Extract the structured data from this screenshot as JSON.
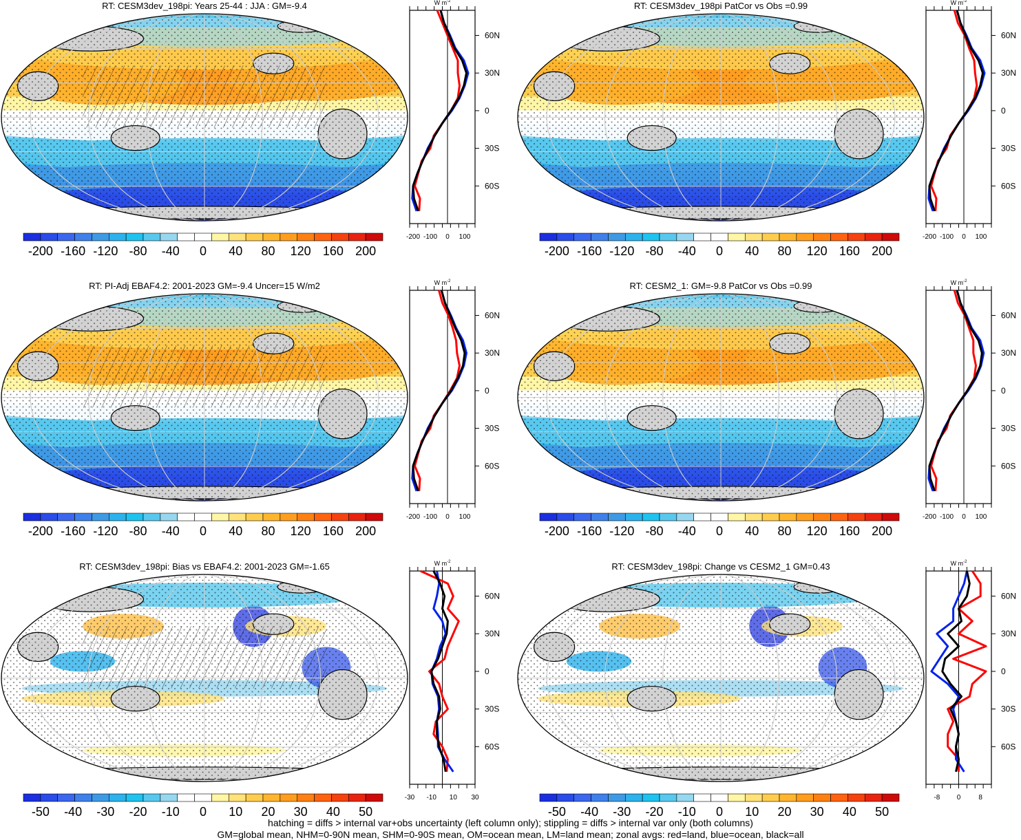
{
  "panels": [
    {
      "title": "RT: CESM3dev_198pi: Years 25-44 : JJA : GM=-9.4",
      "scale": "full"
    },
    {
      "title": "RT: CESM3dev_198pi PatCor vs Obs =0.99",
      "scale": "full"
    },
    {
      "title": "RT: PI-Adj EBAF4.2: 2001-2023 GM=-9.4 Uncer=15 W/m2",
      "scale": "full"
    },
    {
      "title": "RT: CESM2_1: GM=-9.8 PatCor vs Obs =0.99",
      "scale": "full"
    },
    {
      "title": "RT: CESM3dev_198pi: Bias vs EBAF4.2: 2001-2023 GM=-1.65",
      "scale": "bias"
    },
    {
      "title": "RT: CESM3dev_198pi: Change vs CESM2_1 GM=0.43",
      "scale": "change"
    }
  ],
  "colorbars": {
    "full": {
      "labels": [
        "-200",
        "-160",
        "-120",
        "-80",
        "-40",
        "0",
        "40",
        "80",
        "120",
        "160",
        "200"
      ]
    },
    "diff": {
      "labels": [
        "-50",
        "-40",
        "-30",
        "-20",
        "-10",
        "0",
        "10",
        "20",
        "30",
        "40",
        "50"
      ]
    },
    "colors": [
      "#1b2fe0",
      "#2a4ce8",
      "#3b66ee",
      "#3f80ea",
      "#3f9ae6",
      "#2cb2ec",
      "#1fc3f0",
      "#58c8ee",
      "#97d7f0",
      "#ffffff",
      "#ffffff",
      "#fff6a6",
      "#ffe27a",
      "#ffcd4e",
      "#ffb62e",
      "#ff9e1e",
      "#ff8012",
      "#ff6310",
      "#f5420e",
      "#e82410",
      "#cf0a0a"
    ]
  },
  "zonal": {
    "units": "W m",
    "lat_labels": [
      "60N",
      "30N",
      "0",
      "30S",
      "60S"
    ],
    "full_ticks": [
      "-200",
      "-100",
      "0",
      "100"
    ],
    "bias_ticks": [
      "-30",
      "-10",
      "10",
      "30"
    ],
    "change_ticks": [
      "-8",
      "0",
      "8"
    ]
  },
  "footer": {
    "line1": "hatching = diffs > internal var+obs uncertainty (left column only); stippling = diffs > internal var only (both columns)",
    "line2": "GM=global mean, NHM=0-90N mean, SHM=0-90S mean, OM=ocean mean, LM=land mean; zonal avgs: red=land, blue=ocean, black=all"
  },
  "chart_data": [
    {
      "type": "heatmap",
      "title": "RT: CESM3dev_198pi: Years 25-44 : JJA : GM=-9.4",
      "colorbar_range": [
        -200,
        200
      ],
      "zonal_mean": {
        "lat": [
          80,
          70,
          60,
          50,
          40,
          30,
          20,
          10,
          0,
          -10,
          -20,
          -30,
          -40,
          -50,
          -60,
          -70,
          -80
        ],
        "all": [
          -40,
          -20,
          10,
          40,
          85,
          110,
          95,
          65,
          20,
          -30,
          -75,
          -110,
          -145,
          -175,
          -200,
          -195,
          -170
        ],
        "land": [
          -60,
          -30,
          0,
          30,
          60,
          60,
          70,
          60,
          20,
          -30,
          -80,
          -100,
          -150,
          -170,
          -190,
          -160,
          -165
        ],
        "ocean": [
          -40,
          -20,
          15,
          45,
          95,
          120,
          100,
          70,
          25,
          -30,
          -75,
          -115,
          -145,
          -175,
          -200,
          -205,
          -180
        ]
      }
    },
    {
      "type": "heatmap",
      "title": "RT: CESM3dev_198pi PatCor vs Obs =0.99",
      "colorbar_range": [
        -200,
        200
      ],
      "zonal_mean": {
        "lat": [
          80,
          70,
          60,
          50,
          40,
          30,
          20,
          10,
          0,
          -10,
          -20,
          -30,
          -40,
          -50,
          -60,
          -70,
          -80
        ],
        "all": [
          -40,
          -20,
          10,
          40,
          85,
          110,
          95,
          65,
          20,
          -30,
          -75,
          -110,
          -145,
          -175,
          -200,
          -195,
          -170
        ],
        "land": [
          -55,
          -35,
          5,
          30,
          60,
          65,
          75,
          60,
          20,
          -30,
          -80,
          -100,
          -150,
          -170,
          -190,
          -160,
          -165
        ],
        "ocean": [
          -40,
          -20,
          15,
          45,
          95,
          120,
          100,
          70,
          25,
          -30,
          -75,
          -115,
          -145,
          -175,
          -200,
          -205,
          -180
        ]
      }
    },
    {
      "type": "heatmap",
      "title": "RT: PI-Adj EBAF4.2: 2001-2023 GM=-9.4 Uncer=15 W/m2",
      "colorbar_range": [
        -200,
        200
      ],
      "zonal_mean": {
        "lat": [
          80,
          70,
          60,
          50,
          40,
          30,
          20,
          10,
          0,
          -10,
          -20,
          -30,
          -40,
          -50,
          -60,
          -70,
          -80
        ],
        "all": [
          -35,
          -15,
          15,
          45,
          80,
          100,
          90,
          60,
          20,
          -30,
          -75,
          -110,
          -145,
          -175,
          -200,
          -195,
          -170
        ],
        "land": [
          -50,
          -30,
          5,
          30,
          50,
          55,
          70,
          55,
          15,
          -30,
          -80,
          -100,
          -150,
          -170,
          -190,
          -160,
          -165
        ],
        "ocean": [
          -35,
          -15,
          20,
          50,
          90,
          110,
          95,
          65,
          25,
          -30,
          -75,
          -115,
          -145,
          -175,
          -200,
          -205,
          -180
        ]
      }
    },
    {
      "type": "heatmap",
      "title": "RT: CESM2_1: GM=-9.8 PatCor vs Obs =0.99",
      "colorbar_range": [
        -200,
        200
      ],
      "zonal_mean": {
        "lat": [
          80,
          70,
          60,
          50,
          40,
          30,
          20,
          10,
          0,
          -10,
          -20,
          -30,
          -40,
          -50,
          -60,
          -70,
          -80
        ],
        "all": [
          -40,
          -20,
          10,
          40,
          85,
          105,
          95,
          65,
          20,
          -30,
          -75,
          -110,
          -145,
          -175,
          -200,
          -195,
          -170
        ],
        "land": [
          -55,
          -35,
          5,
          30,
          55,
          55,
          70,
          60,
          20,
          -30,
          -80,
          -100,
          -150,
          -170,
          -190,
          -160,
          -165
        ],
        "ocean": [
          -40,
          -20,
          15,
          45,
          95,
          115,
          100,
          70,
          25,
          -30,
          -75,
          -115,
          -145,
          -175,
          -200,
          -205,
          -180
        ]
      }
    },
    {
      "type": "heatmap",
      "title": "RT: CESM3dev_198pi: Bias vs EBAF4.2: 2001-2023 GM=-1.65",
      "colorbar_range": [
        -50,
        50
      ],
      "zonal_mean": {
        "lat": [
          80,
          70,
          60,
          50,
          40,
          30,
          20,
          10,
          0,
          -10,
          -20,
          -30,
          -40,
          -50,
          -60,
          -70,
          -80
        ],
        "all": [
          -8,
          -2,
          2,
          0,
          5,
          4,
          0,
          -4,
          -10,
          -8,
          -3,
          -2,
          -5,
          -5,
          -3,
          1,
          3
        ],
        "land": [
          -20,
          5,
          10,
          5,
          15,
          10,
          5,
          2,
          -12,
          -3,
          0,
          5,
          -6,
          -8,
          0,
          5,
          4
        ],
        "ocean": [
          -5,
          -3,
          -5,
          -8,
          0,
          3,
          -2,
          -5,
          -10,
          -9,
          -4,
          -3,
          -5,
          -4,
          -4,
          2,
          10
        ]
      }
    },
    {
      "type": "heatmap",
      "title": "RT: CESM3dev_198pi: Change vs CESM2_1 GM=0.43",
      "colorbar_range": [
        -50,
        50
      ],
      "zonal_mean": {
        "lat": [
          80,
          70,
          60,
          50,
          40,
          30,
          20,
          10,
          0,
          -10,
          -20,
          -30,
          -40,
          -50,
          -60,
          -70,
          -80
        ],
        "all": [
          3,
          4,
          3,
          0,
          1,
          -4,
          0,
          -5,
          -6,
          -3,
          1,
          -3,
          -1,
          0,
          -1,
          0,
          -1
        ],
        "land": [
          5,
          8,
          8,
          0,
          5,
          0,
          10,
          -2,
          10,
          5,
          4,
          -4,
          -2,
          -4,
          -4,
          0,
          0
        ],
        "ocean": [
          3,
          2,
          0,
          -2,
          -2,
          -8,
          -4,
          -7,
          -10,
          -4,
          0,
          -2,
          -1,
          0,
          -1,
          -1,
          2
        ]
      }
    }
  ]
}
